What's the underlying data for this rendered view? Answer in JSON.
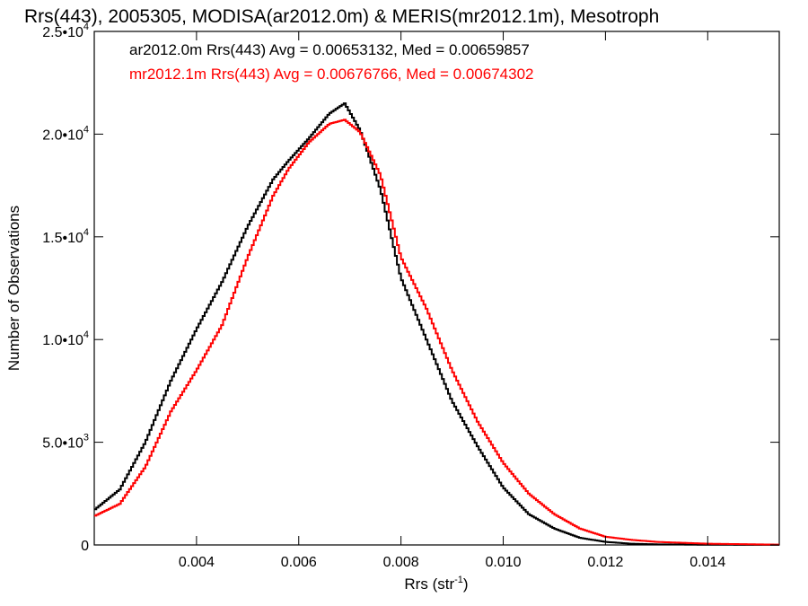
{
  "chart_data": {
    "type": "line",
    "title": "Rrs(443), 2005305, MODISA(ar2012.0m) & MERIS(mr2012.1m), Mesotroph",
    "xlabel": "Rrs (str",
    "xlabel_sup": "-1",
    "xlabel_end": ")",
    "ylabel": "Number of Observations",
    "xlim": [
      0.002,
      0.0154
    ],
    "ylim": [
      0,
      25000
    ],
    "x_ticks": [
      {
        "value": 0.004,
        "label": "0.004"
      },
      {
        "value": 0.006,
        "label": "0.006"
      },
      {
        "value": 0.008,
        "label": "0.008"
      },
      {
        "value": 0.01,
        "label": "0.010"
      },
      {
        "value": 0.012,
        "label": "0.012"
      },
      {
        "value": 0.014,
        "label": "0.014"
      }
    ],
    "y_ticks": [
      {
        "value": 0,
        "mant": "0",
        "exp": ""
      },
      {
        "value": 5000,
        "mant": "5.0•10",
        "exp": "3"
      },
      {
        "value": 10000,
        "mant": "1.0•10",
        "exp": "4"
      },
      {
        "value": 15000,
        "mant": "1.5•10",
        "exp": "4"
      },
      {
        "value": 20000,
        "mant": "2.0•10",
        "exp": "4"
      },
      {
        "value": 25000,
        "mant": "2.5•10",
        "exp": "4"
      }
    ],
    "grid": false,
    "legend_position": "top-left",
    "series": [
      {
        "name": "ar2012.0m Rrs(443) Avg = 0.00653132, Med = 0.00659857",
        "color": "#000000",
        "x": [
          0.002,
          0.0025,
          0.003,
          0.0035,
          0.004,
          0.0045,
          0.005,
          0.0055,
          0.0058,
          0.0062,
          0.0066,
          0.0069,
          0.0072,
          0.0076,
          0.008,
          0.0085,
          0.009,
          0.0095,
          0.01,
          0.0105,
          0.011,
          0.0115,
          0.012,
          0.0125,
          0.013,
          0.014,
          0.0154
        ],
        "y": [
          1700,
          2700,
          5000,
          8000,
          10500,
          12800,
          15500,
          17800,
          18700,
          19800,
          21000,
          21500,
          20200,
          17300,
          13000,
          10000,
          7000,
          4800,
          2800,
          1500,
          800,
          350,
          150,
          60,
          30,
          10,
          5
        ]
      },
      {
        "name": "mr2012.1m Rrs(443) Avg = 0.00676766, Med = 0.00674302",
        "color": "#ff0000",
        "x": [
          0.002,
          0.0025,
          0.003,
          0.0035,
          0.004,
          0.0045,
          0.005,
          0.0055,
          0.0058,
          0.0062,
          0.0066,
          0.0069,
          0.0072,
          0.0076,
          0.008,
          0.0085,
          0.009,
          0.0095,
          0.01,
          0.0105,
          0.011,
          0.0115,
          0.012,
          0.0125,
          0.013,
          0.014,
          0.0154
        ],
        "y": [
          1400,
          2000,
          3800,
          6500,
          8500,
          10700,
          14000,
          17000,
          18300,
          19600,
          20500,
          20700,
          20100,
          18000,
          14000,
          11500,
          8500,
          6000,
          4000,
          2500,
          1500,
          800,
          400,
          250,
          150,
          60,
          15
        ]
      }
    ]
  }
}
